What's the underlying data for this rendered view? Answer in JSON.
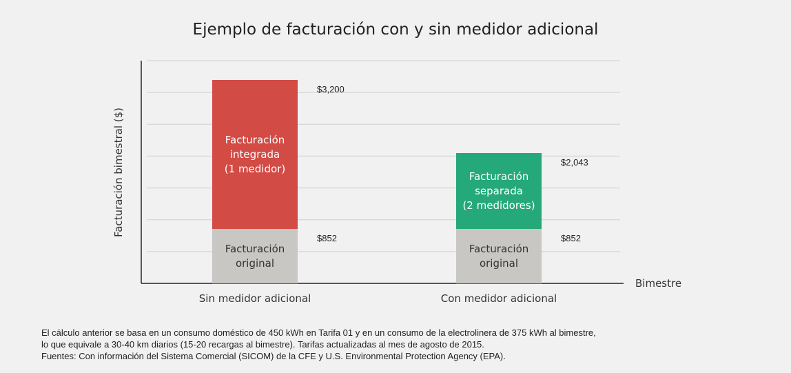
{
  "chart_data": {
    "type": "stacked_bar",
    "title": "Ejemplo de facturación con y sin medidor adicional",
    "y_label": "Facturación bimestral ($)",
    "x_label": "Bimestre",
    "categories": [
      "Sin medidor adicional",
      "Con medidor adicional"
    ],
    "series": [
      {
        "name": "Facturación\noriginal",
        "color": "#c9c7c4",
        "values": [
          852,
          852
        ],
        "value_labels": [
          "$852",
          "$852"
        ]
      },
      {
        "name": "Facturación\nintegrada\n(1 medidor)",
        "color": "#d24b45",
        "values": [
          2348,
          null
        ]
      },
      {
        "name": "Facturación\nseparada\n(2 medidores)",
        "color": "#25a97a",
        "values": [
          null,
          1191
        ]
      }
    ],
    "totals": [
      3200,
      2043
    ],
    "total_labels": [
      "$3,200",
      "$2,043"
    ],
    "ylim": [
      0,
      3500
    ],
    "yticks": [
      0,
      500,
      1000,
      1500,
      2000,
      2500,
      3000,
      3500
    ],
    "grid": true,
    "notes": [
      "El cálculo anterior se basa en un consumo doméstico de 450 kWh en Tarifa 01 y en un consumo de la electrolinera de 375 kWh al bimestre,",
      "lo que equivale a 30-40 km diarios (15-20 recargas al bimestre). Tarifas actualizadas al mes de agosto de 2015.",
      "Fuentes: Con información del Sistema Comercial (SICOM) de la CFE y U.S. Environmental Protection Agency (EPA)."
    ]
  }
}
